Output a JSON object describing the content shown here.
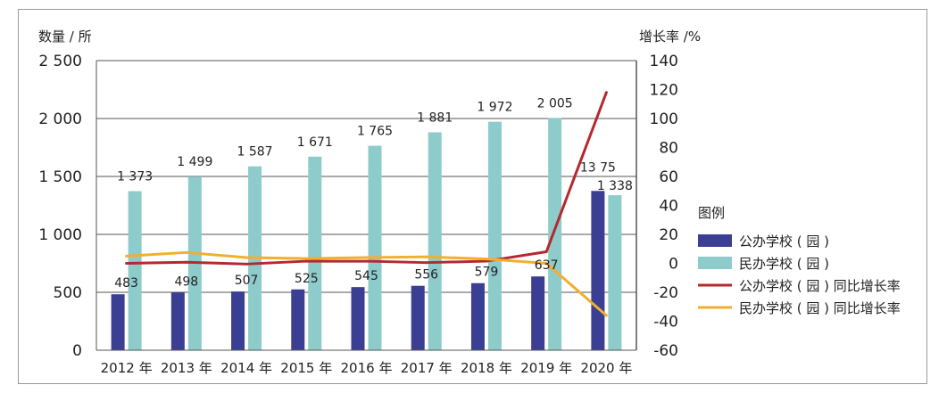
{
  "chart_data": {
    "type": "bar",
    "title": "",
    "xlabel": "",
    "ylabel": "数量 / 所",
    "y2label": "增长率 /%",
    "categories": [
      "2012 年",
      "2013 年",
      "2014 年",
      "2015 年",
      "2016 年",
      "2017 年",
      "2018 年",
      "2019 年",
      "2020 年"
    ],
    "ylim": [
      0,
      2500
    ],
    "y_ticks": [
      "0",
      "500",
      "1 000",
      "1 500",
      "2 000",
      "2 500"
    ],
    "y2lim": [
      -60,
      140
    ],
    "y2_ticks": [
      "-60",
      "-40",
      "-20",
      "0",
      "20",
      "40",
      "60",
      "80",
      "100",
      "120",
      "140"
    ],
    "grid": true,
    "legend_position": "right",
    "legend_title": "图例",
    "series": [
      {
        "name": "公办学校 ( 园 )",
        "type": "bar",
        "axis": "left",
        "color": "#3a3f93",
        "values": [
          483,
          498,
          507,
          525,
          545,
          556,
          579,
          637,
          1375
        ],
        "labels": [
          "483",
          "498",
          "507",
          "525",
          "545",
          "556",
          "579",
          "637",
          "13 75"
        ]
      },
      {
        "name": "民办学校 ( 园 )",
        "type": "bar",
        "axis": "left",
        "color": "#8ecbcb",
        "values": [
          1373,
          1499,
          1587,
          1671,
          1765,
          1881,
          1972,
          2005,
          1338
        ],
        "labels": [
          "1 373",
          "1 499",
          "1 587",
          "1 671",
          "1 765",
          "1 881",
          "1 972",
          "2 005",
          "1 338"
        ]
      },
      {
        "name": "公办学校 ( 园 ) 同比增长率",
        "type": "line",
        "axis": "right",
        "color": "#b5282e",
        "values": [
          0,
          0.8,
          -0.5,
          1.5,
          1.5,
          0.5,
          1.5,
          8,
          118
        ]
      },
      {
        "name": "民办学校 ( 园 ) 同比增长率",
        "type": "line",
        "axis": "right",
        "color": "#f3ae2e",
        "values": [
          5,
          7.5,
          4,
          3.3,
          4,
          4.5,
          3,
          0,
          -36
        ]
      }
    ]
  }
}
